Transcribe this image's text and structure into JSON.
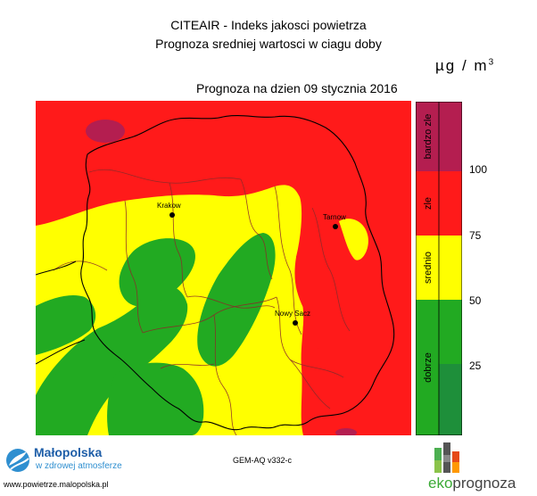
{
  "header": {
    "title_line1": "CITEAIR - Indeks jakosci powietrza",
    "title_line2": "Prognoza sredniej wartosci w ciagu doby",
    "unit_base": "µg / m",
    "unit_exp": "3",
    "forecast_date": "Prognoza na dzien  09 stycznia 2016"
  },
  "map": {
    "colors": {
      "bardzo_zle": "#b41e50",
      "zle": "#ff1a1a",
      "srednio": "#ffff00",
      "dobrze": "#22aa22",
      "border": "#000000",
      "district": "#8b2a2a"
    },
    "cities": [
      {
        "name": "Krakow"
      },
      {
        "name": "Tarnow"
      },
      {
        "name": "Nowy Sacz"
      }
    ]
  },
  "legend": {
    "categories": [
      {
        "label": "bardzo zle",
        "color": "#b41e50"
      },
      {
        "label": "zle",
        "color": "#ff1a1a"
      },
      {
        "label": "srednio",
        "color": "#ffff00"
      },
      {
        "label": "dobrze",
        "color": "#22aa22"
      }
    ],
    "ticks": [
      "100",
      "75",
      "50",
      "25"
    ]
  },
  "footer": {
    "model": "GEM-AQ v332-c",
    "malopolska_name": "Małopolska",
    "malopolska_tagline": "w zdrowej atmosferze",
    "malopolska_url": "www.powietrze.malopolska.pl",
    "eko_part1": "eko",
    "eko_part2": "prognoza"
  }
}
